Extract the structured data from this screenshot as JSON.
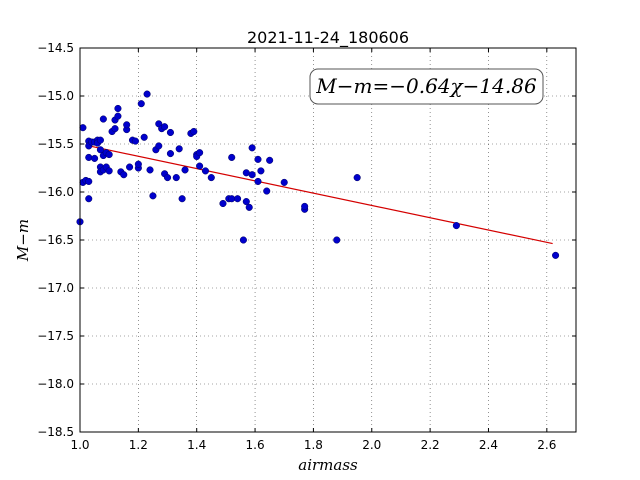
{
  "chart_data": {
    "type": "scatter",
    "title": "2021-11-24_180606",
    "xlabel": "airmass",
    "ylabel": "M−m",
    "xlim": [
      1.0,
      2.7
    ],
    "ylim": [
      -18.5,
      -14.5
    ],
    "x_ticks": [
      1.0,
      1.2,
      1.4,
      1.6,
      1.8,
      2.0,
      2.2,
      2.4,
      2.6
    ],
    "y_ticks": [
      -14.5,
      -15.0,
      -15.5,
      -16.0,
      -16.5,
      -17.0,
      -17.5,
      -18.0,
      -18.5
    ],
    "x_tick_labels": [
      "1.0",
      "1.2",
      "1.4",
      "1.6",
      "1.8",
      "2.0",
      "2.2",
      "2.4",
      "2.6"
    ],
    "y_tick_labels": [
      "−14.5",
      "−15.0",
      "−15.5",
      "−16.0",
      "−16.5",
      "−17.0",
      "−17.5",
      "−18.0",
      "−18.5"
    ],
    "grid": true,
    "annotation": "M−m=−0.64χ−14.86",
    "fit_line": {
      "slope": -0.64,
      "intercept": -14.86,
      "x_range": [
        1.03,
        2.62
      ],
      "color": "#d40000"
    },
    "point_color": "#0000cc",
    "points": [
      [
        1.0,
        -16.31
      ],
      [
        1.01,
        -15.33
      ],
      [
        1.01,
        -15.9
      ],
      [
        1.02,
        -15.88
      ],
      [
        1.03,
        -15.89
      ],
      [
        1.03,
        -16.07
      ],
      [
        1.03,
        -15.47
      ],
      [
        1.03,
        -15.52
      ],
      [
        1.03,
        -15.64
      ],
      [
        1.04,
        -15.48
      ],
      [
        1.05,
        -15.65
      ],
      [
        1.05,
        -15.48
      ],
      [
        1.06,
        -15.46
      ],
      [
        1.06,
        -15.49
      ],
      [
        1.07,
        -15.46
      ],
      [
        1.07,
        -15.56
      ],
      [
        1.07,
        -15.74
      ],
      [
        1.07,
        -15.79
      ],
      [
        1.08,
        -15.24
      ],
      [
        1.08,
        -15.62
      ],
      [
        1.08,
        -15.77
      ],
      [
        1.09,
        -15.74
      ],
      [
        1.09,
        -15.59
      ],
      [
        1.1,
        -15.78
      ],
      [
        1.1,
        -15.61
      ],
      [
        1.11,
        -15.37
      ],
      [
        1.12,
        -15.25
      ],
      [
        1.12,
        -15.34
      ],
      [
        1.13,
        -15.13
      ],
      [
        1.13,
        -15.21
      ],
      [
        1.14,
        -15.79
      ],
      [
        1.15,
        -15.82
      ],
      [
        1.16,
        -15.35
      ],
      [
        1.16,
        -15.3
      ],
      [
        1.17,
        -15.74
      ],
      [
        1.18,
        -15.46
      ],
      [
        1.19,
        -15.47
      ],
      [
        1.2,
        -15.75
      ],
      [
        1.2,
        -15.71
      ],
      [
        1.21,
        -15.08
      ],
      [
        1.22,
        -15.43
      ],
      [
        1.23,
        -14.98
      ],
      [
        1.24,
        -15.77
      ],
      [
        1.25,
        -16.04
      ],
      [
        1.26,
        -15.56
      ],
      [
        1.27,
        -15.52
      ],
      [
        1.27,
        -15.29
      ],
      [
        1.28,
        -15.34
      ],
      [
        1.29,
        -15.32
      ],
      [
        1.29,
        -15.81
      ],
      [
        1.3,
        -15.85
      ],
      [
        1.31,
        -15.6
      ],
      [
        1.31,
        -15.38
      ],
      [
        1.33,
        -15.85
      ],
      [
        1.34,
        -15.55
      ],
      [
        1.35,
        -16.07
      ],
      [
        1.36,
        -15.77
      ],
      [
        1.38,
        -15.39
      ],
      [
        1.39,
        -15.37
      ],
      [
        1.4,
        -15.61
      ],
      [
        1.4,
        -15.63
      ],
      [
        1.41,
        -15.73
      ],
      [
        1.41,
        -15.59
      ],
      [
        1.43,
        -15.78
      ],
      [
        1.45,
        -15.85
      ],
      [
        1.49,
        -16.12
      ],
      [
        1.51,
        -16.07
      ],
      [
        1.52,
        -16.07
      ],
      [
        1.52,
        -15.64
      ],
      [
        1.54,
        -16.07
      ],
      [
        1.56,
        -16.5
      ],
      [
        1.57,
        -15.8
      ],
      [
        1.57,
        -16.1
      ],
      [
        1.58,
        -16.16
      ],
      [
        1.59,
        -15.82
      ],
      [
        1.59,
        -15.54
      ],
      [
        1.61,
        -15.66
      ],
      [
        1.61,
        -15.89
      ],
      [
        1.62,
        -15.78
      ],
      [
        1.64,
        -15.99
      ],
      [
        1.65,
        -15.67
      ],
      [
        1.7,
        -15.9
      ],
      [
        1.77,
        -16.18
      ],
      [
        1.77,
        -16.15
      ],
      [
        1.88,
        -16.5
      ],
      [
        1.95,
        -15.85
      ],
      [
        2.29,
        -16.35
      ],
      [
        2.63,
        -16.66
      ]
    ]
  }
}
